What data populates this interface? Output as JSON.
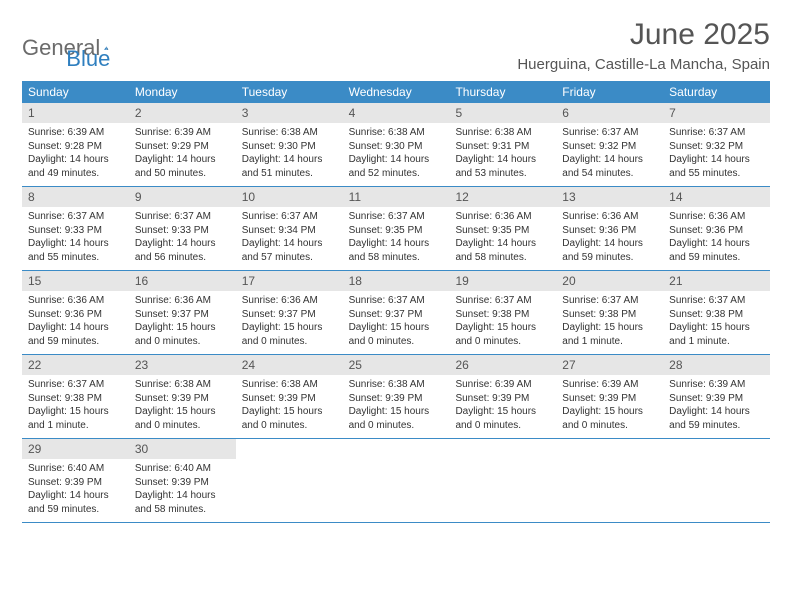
{
  "brand": {
    "part1": "General",
    "part2": "Blue"
  },
  "title": "June 2025",
  "location": "Huerguina, Castille-La Mancha, Spain",
  "colors": {
    "header_bg": "#3b8bc6",
    "header_text": "#ffffff",
    "daynum_bg": "#e6e6e6",
    "text": "#333333",
    "brand_gray": "#6b6b6b",
    "brand_blue": "#2f7fbf",
    "border": "#3b8bc6"
  },
  "day_names": [
    "Sunday",
    "Monday",
    "Tuesday",
    "Wednesday",
    "Thursday",
    "Friday",
    "Saturday"
  ],
  "weeks": [
    [
      {
        "n": "1",
        "sr": "Sunrise: 6:39 AM",
        "ss": "Sunset: 9:28 PM",
        "d1": "Daylight: 14 hours",
        "d2": "and 49 minutes."
      },
      {
        "n": "2",
        "sr": "Sunrise: 6:39 AM",
        "ss": "Sunset: 9:29 PM",
        "d1": "Daylight: 14 hours",
        "d2": "and 50 minutes."
      },
      {
        "n": "3",
        "sr": "Sunrise: 6:38 AM",
        "ss": "Sunset: 9:30 PM",
        "d1": "Daylight: 14 hours",
        "d2": "and 51 minutes."
      },
      {
        "n": "4",
        "sr": "Sunrise: 6:38 AM",
        "ss": "Sunset: 9:30 PM",
        "d1": "Daylight: 14 hours",
        "d2": "and 52 minutes."
      },
      {
        "n": "5",
        "sr": "Sunrise: 6:38 AM",
        "ss": "Sunset: 9:31 PM",
        "d1": "Daylight: 14 hours",
        "d2": "and 53 minutes."
      },
      {
        "n": "6",
        "sr": "Sunrise: 6:37 AM",
        "ss": "Sunset: 9:32 PM",
        "d1": "Daylight: 14 hours",
        "d2": "and 54 minutes."
      },
      {
        "n": "7",
        "sr": "Sunrise: 6:37 AM",
        "ss": "Sunset: 9:32 PM",
        "d1": "Daylight: 14 hours",
        "d2": "and 55 minutes."
      }
    ],
    [
      {
        "n": "8",
        "sr": "Sunrise: 6:37 AM",
        "ss": "Sunset: 9:33 PM",
        "d1": "Daylight: 14 hours",
        "d2": "and 55 minutes."
      },
      {
        "n": "9",
        "sr": "Sunrise: 6:37 AM",
        "ss": "Sunset: 9:33 PM",
        "d1": "Daylight: 14 hours",
        "d2": "and 56 minutes."
      },
      {
        "n": "10",
        "sr": "Sunrise: 6:37 AM",
        "ss": "Sunset: 9:34 PM",
        "d1": "Daylight: 14 hours",
        "d2": "and 57 minutes."
      },
      {
        "n": "11",
        "sr": "Sunrise: 6:37 AM",
        "ss": "Sunset: 9:35 PM",
        "d1": "Daylight: 14 hours",
        "d2": "and 58 minutes."
      },
      {
        "n": "12",
        "sr": "Sunrise: 6:36 AM",
        "ss": "Sunset: 9:35 PM",
        "d1": "Daylight: 14 hours",
        "d2": "and 58 minutes."
      },
      {
        "n": "13",
        "sr": "Sunrise: 6:36 AM",
        "ss": "Sunset: 9:36 PM",
        "d1": "Daylight: 14 hours",
        "d2": "and 59 minutes."
      },
      {
        "n": "14",
        "sr": "Sunrise: 6:36 AM",
        "ss": "Sunset: 9:36 PM",
        "d1": "Daylight: 14 hours",
        "d2": "and 59 minutes."
      }
    ],
    [
      {
        "n": "15",
        "sr": "Sunrise: 6:36 AM",
        "ss": "Sunset: 9:36 PM",
        "d1": "Daylight: 14 hours",
        "d2": "and 59 minutes."
      },
      {
        "n": "16",
        "sr": "Sunrise: 6:36 AM",
        "ss": "Sunset: 9:37 PM",
        "d1": "Daylight: 15 hours",
        "d2": "and 0 minutes."
      },
      {
        "n": "17",
        "sr": "Sunrise: 6:36 AM",
        "ss": "Sunset: 9:37 PM",
        "d1": "Daylight: 15 hours",
        "d2": "and 0 minutes."
      },
      {
        "n": "18",
        "sr": "Sunrise: 6:37 AM",
        "ss": "Sunset: 9:37 PM",
        "d1": "Daylight: 15 hours",
        "d2": "and 0 minutes."
      },
      {
        "n": "19",
        "sr": "Sunrise: 6:37 AM",
        "ss": "Sunset: 9:38 PM",
        "d1": "Daylight: 15 hours",
        "d2": "and 0 minutes."
      },
      {
        "n": "20",
        "sr": "Sunrise: 6:37 AM",
        "ss": "Sunset: 9:38 PM",
        "d1": "Daylight: 15 hours",
        "d2": "and 1 minute."
      },
      {
        "n": "21",
        "sr": "Sunrise: 6:37 AM",
        "ss": "Sunset: 9:38 PM",
        "d1": "Daylight: 15 hours",
        "d2": "and 1 minute."
      }
    ],
    [
      {
        "n": "22",
        "sr": "Sunrise: 6:37 AM",
        "ss": "Sunset: 9:38 PM",
        "d1": "Daylight: 15 hours",
        "d2": "and 1 minute."
      },
      {
        "n": "23",
        "sr": "Sunrise: 6:38 AM",
        "ss": "Sunset: 9:39 PM",
        "d1": "Daylight: 15 hours",
        "d2": "and 0 minutes."
      },
      {
        "n": "24",
        "sr": "Sunrise: 6:38 AM",
        "ss": "Sunset: 9:39 PM",
        "d1": "Daylight: 15 hours",
        "d2": "and 0 minutes."
      },
      {
        "n": "25",
        "sr": "Sunrise: 6:38 AM",
        "ss": "Sunset: 9:39 PM",
        "d1": "Daylight: 15 hours",
        "d2": "and 0 minutes."
      },
      {
        "n": "26",
        "sr": "Sunrise: 6:39 AM",
        "ss": "Sunset: 9:39 PM",
        "d1": "Daylight: 15 hours",
        "d2": "and 0 minutes."
      },
      {
        "n": "27",
        "sr": "Sunrise: 6:39 AM",
        "ss": "Sunset: 9:39 PM",
        "d1": "Daylight: 15 hours",
        "d2": "and 0 minutes."
      },
      {
        "n": "28",
        "sr": "Sunrise: 6:39 AM",
        "ss": "Sunset: 9:39 PM",
        "d1": "Daylight: 14 hours",
        "d2": "and 59 minutes."
      }
    ],
    [
      {
        "n": "29",
        "sr": "Sunrise: 6:40 AM",
        "ss": "Sunset: 9:39 PM",
        "d1": "Daylight: 14 hours",
        "d2": "and 59 minutes."
      },
      {
        "n": "30",
        "sr": "Sunrise: 6:40 AM",
        "ss": "Sunset: 9:39 PM",
        "d1": "Daylight: 14 hours",
        "d2": "and 58 minutes."
      },
      null,
      null,
      null,
      null,
      null
    ]
  ]
}
